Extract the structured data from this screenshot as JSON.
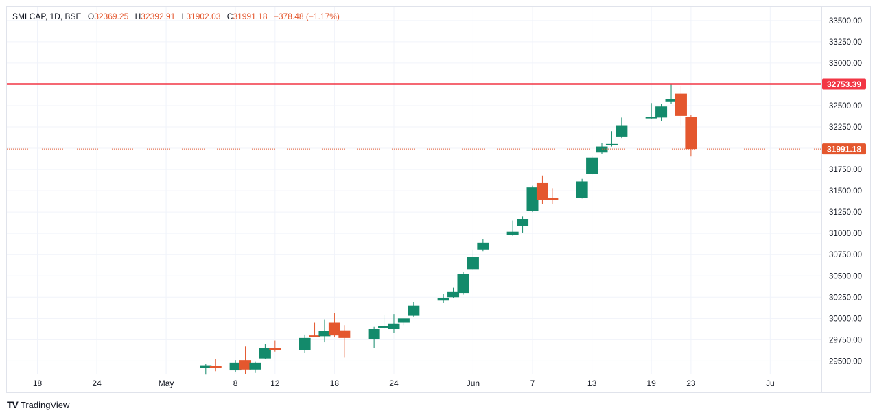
{
  "legend": {
    "symbol": "SMLCAP, 1D, BSE",
    "open_key": "O",
    "open": "32369.25",
    "high_key": "H",
    "high": "32392.91",
    "low_key": "L",
    "low": "31902.03",
    "close_key": "C",
    "close": "31991.18",
    "change": "−378.48 (−1.17%)"
  },
  "footer": {
    "brand": "TradingView"
  },
  "colors": {
    "up": "#138a6b",
    "down": "#e4572e",
    "level_line": "#f23645",
    "grid": "#f0f3fa",
    "axis_text": "#131722"
  },
  "chart_data": {
    "type": "candlestick",
    "y_ticks": [
      "29500.00",
      "29750.00",
      "30000.00",
      "30250.00",
      "30500.00",
      "30750.00",
      "31000.00",
      "31250.00",
      "31500.00",
      "31750.00",
      "32000.00",
      "32250.00",
      "32500.00",
      "32750.00",
      "33000.00",
      "33250.00",
      "33500.00"
    ],
    "ylim": [
      29350,
      33660
    ],
    "x_ticks": [
      {
        "label": "18",
        "date": "2023-04-18"
      },
      {
        "label": "24",
        "date": "2023-04-24"
      },
      {
        "label": "May",
        "date": "2023-05-01"
      },
      {
        "label": "8",
        "date": "2023-05-08"
      },
      {
        "label": "12",
        "date": "2023-05-12"
      },
      {
        "label": "18",
        "date": "2023-05-18"
      },
      {
        "label": "24",
        "date": "2023-05-24"
      },
      {
        "label": "Jun",
        "date": "2023-06-01"
      },
      {
        "label": "7",
        "date": "2023-06-07"
      },
      {
        "label": "13",
        "date": "2023-06-13"
      },
      {
        "label": "19",
        "date": "2023-06-19"
      },
      {
        "label": "23",
        "date": "2023-06-23"
      },
      {
        "label": "Ju",
        "date": "2023-07-01"
      }
    ],
    "horizontal_level": {
      "value": 32753.39,
      "label": "32753.39"
    },
    "last_price": {
      "value": 31991.18,
      "label": "31991.18"
    },
    "candles": [
      {
        "date": "2023-05-05",
        "o": 29420,
        "h": 29470,
        "l": 29340,
        "c": 29450
      },
      {
        "date": "2023-05-06",
        "o": 29440,
        "h": 29520,
        "l": 29380,
        "c": 29420
      },
      {
        "date": "2023-05-08",
        "o": 29390,
        "h": 29510,
        "l": 29370,
        "c": 29480
      },
      {
        "date": "2023-05-09",
        "o": 29510,
        "h": 29670,
        "l": 29350,
        "c": 29400
      },
      {
        "date": "2023-05-10",
        "o": 29400,
        "h": 29490,
        "l": 29360,
        "c": 29480
      },
      {
        "date": "2023-05-11",
        "o": 29530,
        "h": 29700,
        "l": 29520,
        "c": 29650
      },
      {
        "date": "2023-05-12",
        "o": 29650,
        "h": 29740,
        "l": 29610,
        "c": 29630
      },
      {
        "date": "2023-05-15",
        "o": 29630,
        "h": 29810,
        "l": 29600,
        "c": 29770
      },
      {
        "date": "2023-05-16",
        "o": 29800,
        "h": 29950,
        "l": 29780,
        "c": 29790
      },
      {
        "date": "2023-05-17",
        "o": 29790,
        "h": 29990,
        "l": 29720,
        "c": 29850
      },
      {
        "date": "2023-05-18",
        "o": 29950,
        "h": 30060,
        "l": 29780,
        "c": 29800
      },
      {
        "date": "2023-05-19",
        "o": 29860,
        "h": 29920,
        "l": 29540,
        "c": 29770
      },
      {
        "date": "2023-05-22",
        "o": 29760,
        "h": 29900,
        "l": 29650,
        "c": 29880
      },
      {
        "date": "2023-05-23",
        "o": 29890,
        "h": 30040,
        "l": 29880,
        "c": 29910
      },
      {
        "date": "2023-05-24",
        "o": 29880,
        "h": 30050,
        "l": 29830,
        "c": 29940
      },
      {
        "date": "2023-05-25",
        "o": 29950,
        "h": 30000,
        "l": 29920,
        "c": 30000
      },
      {
        "date": "2023-05-26",
        "o": 30030,
        "h": 30190,
        "l": 30020,
        "c": 30150
      },
      {
        "date": "2023-05-29",
        "o": 30210,
        "h": 30290,
        "l": 30180,
        "c": 30240
      },
      {
        "date": "2023-05-30",
        "o": 30250,
        "h": 30360,
        "l": 30240,
        "c": 30310
      },
      {
        "date": "2023-05-31",
        "o": 30300,
        "h": 30550,
        "l": 30280,
        "c": 30520
      },
      {
        "date": "2023-06-01",
        "o": 30580,
        "h": 30810,
        "l": 30570,
        "c": 30720
      },
      {
        "date": "2023-06-02",
        "o": 30810,
        "h": 30930,
        "l": 30790,
        "c": 30890
      },
      {
        "date": "2023-06-05",
        "o": 30980,
        "h": 31150,
        "l": 30970,
        "c": 31020
      },
      {
        "date": "2023-06-06",
        "o": 31090,
        "h": 31200,
        "l": 31010,
        "c": 31170
      },
      {
        "date": "2023-06-07",
        "o": 31260,
        "h": 31560,
        "l": 31250,
        "c": 31540
      },
      {
        "date": "2023-06-08",
        "o": 31590,
        "h": 31680,
        "l": 31340,
        "c": 31390
      },
      {
        "date": "2023-06-09",
        "o": 31420,
        "h": 31530,
        "l": 31340,
        "c": 31390
      },
      {
        "date": "2023-06-12",
        "o": 31420,
        "h": 31640,
        "l": 31410,
        "c": 31610
      },
      {
        "date": "2023-06-13",
        "o": 31700,
        "h": 31910,
        "l": 31690,
        "c": 31890
      },
      {
        "date": "2023-06-14",
        "o": 31950,
        "h": 32060,
        "l": 31930,
        "c": 32020
      },
      {
        "date": "2023-06-15",
        "o": 32040,
        "h": 32200,
        "l": 32020,
        "c": 32050
      },
      {
        "date": "2023-06-16",
        "o": 32130,
        "h": 32360,
        "l": 32120,
        "c": 32270
      },
      {
        "date": "2023-06-19",
        "o": 32350,
        "h": 32530,
        "l": 32340,
        "c": 32370
      },
      {
        "date": "2023-06-20",
        "o": 32360,
        "h": 32520,
        "l": 32320,
        "c": 32490
      },
      {
        "date": "2023-06-21",
        "o": 32550,
        "h": 32760,
        "l": 32520,
        "c": 32580
      },
      {
        "date": "2023-06-22",
        "o": 32640,
        "h": 32730,
        "l": 32270,
        "c": 32380
      },
      {
        "date": "2023-06-23",
        "o": 32369.25,
        "h": 32392.91,
        "l": 31902.03,
        "c": 31991.18
      }
    ]
  }
}
